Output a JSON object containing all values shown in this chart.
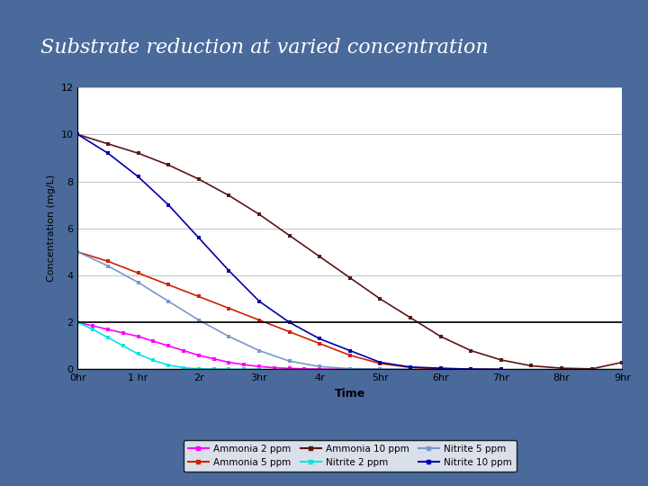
{
  "title": "Substrate reduction at varied concentration",
  "title_bg": "#6b8cbf",
  "slide_bg": "#4a6a9c",
  "xlabel": "Time",
  "ylabel": "Concentration (mg/L)",
  "xlim": [
    0,
    9
  ],
  "ylim": [
    0,
    12
  ],
  "yticks": [
    0,
    2,
    4,
    6,
    8,
    10,
    12
  ],
  "xtick_labels": [
    "0hr",
    "1 hr",
    "2r",
    "3hr",
    "4r",
    "5hr",
    "6hr",
    "7hr",
    "8hr",
    "9hr"
  ],
  "series": {
    "ammonia_2ppm": {
      "label": "Ammonia 2 ppm",
      "color": "#ff00ff",
      "x": [
        0,
        0.25,
        0.5,
        0.75,
        1.0,
        1.25,
        1.5,
        1.75,
        2.0,
        2.25,
        2.5,
        2.75,
        3.0,
        3.25,
        3.5,
        3.75,
        4.0,
        4.5,
        5.0
      ],
      "y": [
        2.0,
        1.85,
        1.7,
        1.55,
        1.4,
        1.2,
        1.0,
        0.8,
        0.6,
        0.45,
        0.3,
        0.2,
        0.12,
        0.07,
        0.04,
        0.02,
        0.01,
        0.0,
        0.0
      ]
    },
    "ammonia_5ppm": {
      "label": "Ammonia 5 ppm",
      "color": "#cc2200",
      "x": [
        0,
        0.5,
        1.0,
        1.5,
        2.0,
        2.5,
        3.0,
        3.5,
        4.0,
        4.5,
        5.0,
        5.5,
        6.0,
        6.5,
        7.0
      ],
      "y": [
        5.0,
        4.6,
        4.1,
        3.6,
        3.1,
        2.6,
        2.1,
        1.6,
        1.1,
        0.6,
        0.25,
        0.08,
        0.02,
        0.01,
        0.0
      ]
    },
    "ammonia_10ppm": {
      "label": "Ammonia 10 ppm",
      "color": "#5c1515",
      "x": [
        0,
        0.5,
        1.0,
        1.5,
        2.0,
        2.5,
        3.0,
        3.5,
        4.0,
        4.5,
        5.0,
        5.5,
        6.0,
        6.5,
        7.0,
        7.5,
        8.0,
        8.5,
        9.0
      ],
      "y": [
        10.0,
        9.6,
        9.2,
        8.7,
        8.1,
        7.4,
        6.6,
        5.7,
        4.8,
        3.9,
        3.0,
        2.2,
        1.4,
        0.8,
        0.4,
        0.15,
        0.05,
        0.02,
        0.3
      ]
    },
    "nitrite_2ppm": {
      "label": "Nitrite 2 ppm",
      "color": "#00e5e5",
      "x": [
        0,
        0.25,
        0.5,
        0.75,
        1.0,
        1.25,
        1.5,
        1.75,
        2.0,
        2.25,
        2.5,
        2.75,
        3.0
      ],
      "y": [
        2.0,
        1.7,
        1.35,
        1.0,
        0.65,
        0.38,
        0.18,
        0.07,
        0.02,
        0.01,
        0.0,
        0.0,
        0.0
      ]
    },
    "nitrite_5ppm": {
      "label": "Nitrite 5 ppm",
      "color": "#7799cc",
      "x": [
        0,
        0.5,
        1.0,
        1.5,
        2.0,
        2.5,
        3.0,
        3.5,
        4.0,
        4.5,
        5.0,
        5.5
      ],
      "y": [
        5.0,
        4.4,
        3.7,
        2.9,
        2.1,
        1.4,
        0.8,
        0.35,
        0.12,
        0.03,
        0.01,
        0.0
      ]
    },
    "nitrite_10ppm": {
      "label": "Nitrite 10 ppm",
      "color": "#0000aa",
      "x": [
        0,
        0.5,
        1.0,
        1.5,
        2.0,
        2.5,
        3.0,
        3.5,
        4.0,
        4.5,
        5.0,
        5.5,
        6.0,
        6.5,
        7.0
      ],
      "y": [
        10.0,
        9.2,
        8.2,
        7.0,
        5.6,
        4.2,
        2.9,
        2.0,
        1.3,
        0.8,
        0.3,
        0.1,
        0.05,
        0.01,
        0.0
      ]
    }
  },
  "legend_order": [
    "ammonia_2ppm",
    "ammonia_5ppm",
    "ammonia_10ppm",
    "nitrite_2ppm",
    "nitrite_5ppm",
    "nitrite_10ppm"
  ]
}
